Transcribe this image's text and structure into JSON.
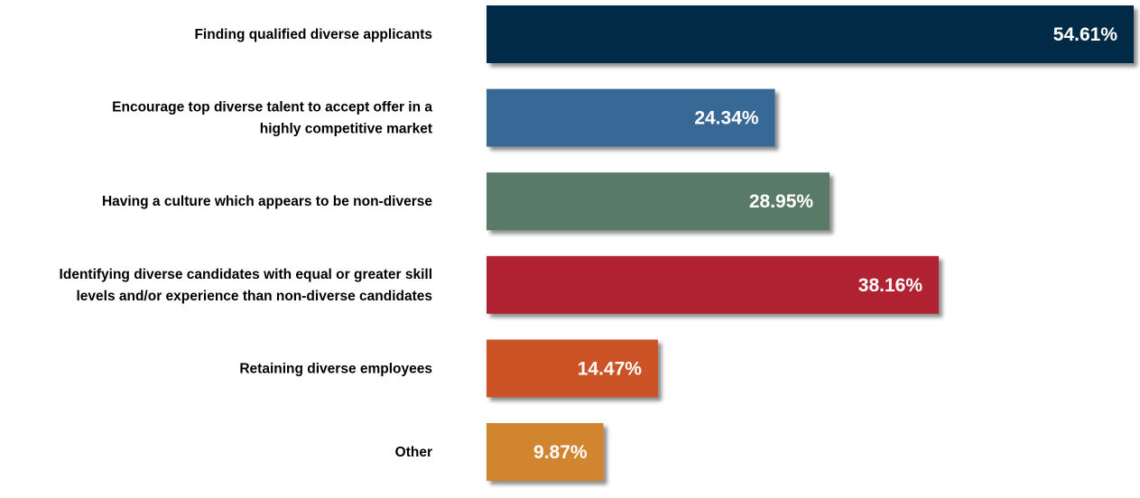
{
  "chart_data": {
    "type": "bar",
    "orientation": "horizontal",
    "categories": [
      [
        "Finding qualified diverse applicants"
      ],
      [
        "Encourage top diverse talent to accept offer in a",
        "highly competitive market"
      ],
      [
        "Having a culture which appears to be non-diverse"
      ],
      [
        "Identifying diverse candidates with equal or greater skill",
        "levels and/or experience than non-diverse candidates"
      ],
      [
        "Retaining diverse employees"
      ],
      [
        "Other"
      ]
    ],
    "values": [
      54.61,
      24.34,
      28.95,
      38.16,
      14.47,
      9.87
    ],
    "value_labels": [
      "54.61%",
      "24.34%",
      "28.95%",
      "38.16%",
      "14.47%",
      "9.87%"
    ],
    "colors": [
      "#002b45",
      "#386895",
      "#587a66",
      "#b02432",
      "#cb5227",
      "#d0852f"
    ],
    "xlim": [
      0,
      54.61
    ],
    "title": "",
    "xlabel": "",
    "ylabel": "",
    "grid": false,
    "legend": "none"
  }
}
